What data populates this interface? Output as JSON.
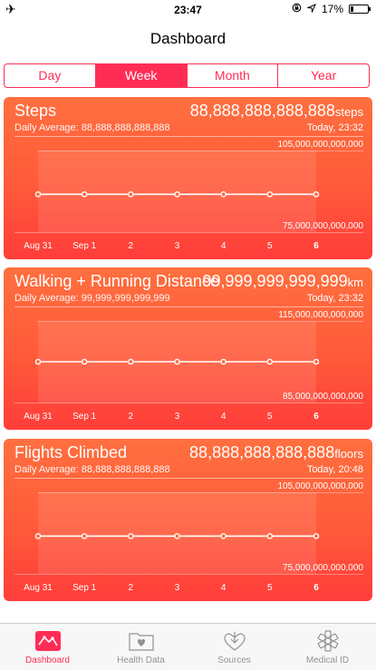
{
  "status": {
    "time": "23:47",
    "battery_text": "17%",
    "battery_level": 0.17
  },
  "nav": {
    "title": "Dashboard"
  },
  "segments": [
    {
      "label": "Day",
      "active": false
    },
    {
      "label": "Week",
      "active": true
    },
    {
      "label": "Month",
      "active": false
    },
    {
      "label": "Year",
      "active": false
    }
  ],
  "cards": [
    {
      "title": "Steps",
      "value": "88,888,888,888,888",
      "unit": "steps",
      "daily_average": "Daily Average: 88,888,888,888,888",
      "when": "Today, 23:32",
      "y_max": "105,000,000,000,000",
      "y_min": "75,000,000,000,000"
    },
    {
      "title": "Walking + Running Distance",
      "value": "99,999,999,999,999",
      "unit": "km",
      "daily_average": "Daily Average: 99,999,999,999,999",
      "when": "Today, 23:32",
      "y_max": "115,000,000,000,000",
      "y_min": "85,000,000,000,000"
    },
    {
      "title": "Flights Climbed",
      "value": "88,888,888,888,888",
      "unit": "floors",
      "daily_average": "Daily Average: 88,888,888,888,888",
      "when": "Today, 20:48",
      "y_max": "105,000,000,000,000",
      "y_min": "75,000,000,000,000"
    }
  ],
  "x_labels": [
    "Aug 31",
    "Sep 1",
    "2",
    "3",
    "4",
    "5",
    "6"
  ],
  "chart_data": [
    {
      "type": "line",
      "x": [
        "Aug 31",
        "Sep 1",
        "2",
        "3",
        "4",
        "5",
        "6"
      ],
      "series": [
        {
          "values": [
            88888888888888,
            88888888888888,
            88888888888888,
            88888888888888,
            88888888888888,
            88888888888888,
            88888888888888
          ]
        }
      ],
      "ylim": [
        75000000000000,
        105000000000000
      ]
    },
    {
      "type": "line",
      "x": [
        "Aug 31",
        "Sep 1",
        "2",
        "3",
        "4",
        "5",
        "6"
      ],
      "series": [
        {
          "values": [
            99999999999999,
            99999999999999,
            99999999999999,
            99999999999999,
            99999999999999,
            99999999999999,
            99999999999999
          ]
        }
      ],
      "ylim": [
        85000000000000,
        115000000000000
      ]
    },
    {
      "type": "line",
      "x": [
        "Aug 31",
        "Sep 1",
        "2",
        "3",
        "4",
        "5",
        "6"
      ],
      "series": [
        {
          "values": [
            88888888888888,
            88888888888888,
            88888888888888,
            88888888888888,
            88888888888888,
            88888888888888,
            88888888888888
          ]
        }
      ],
      "ylim": [
        75000000000000,
        105000000000000
      ]
    }
  ],
  "tabs": [
    {
      "label": "Dashboard",
      "icon": "dashboard-icon",
      "active": true
    },
    {
      "label": "Health Data",
      "icon": "health-data-icon",
      "active": false
    },
    {
      "label": "Sources",
      "icon": "sources-icon",
      "active": false
    },
    {
      "label": "Medical ID",
      "icon": "medical-id-icon",
      "active": false
    }
  ],
  "colors": {
    "accent": "#ff2d55",
    "card_top": "#ff6f3f",
    "card_bottom": "#ff3d3a",
    "tab_inactive": "#929292"
  }
}
